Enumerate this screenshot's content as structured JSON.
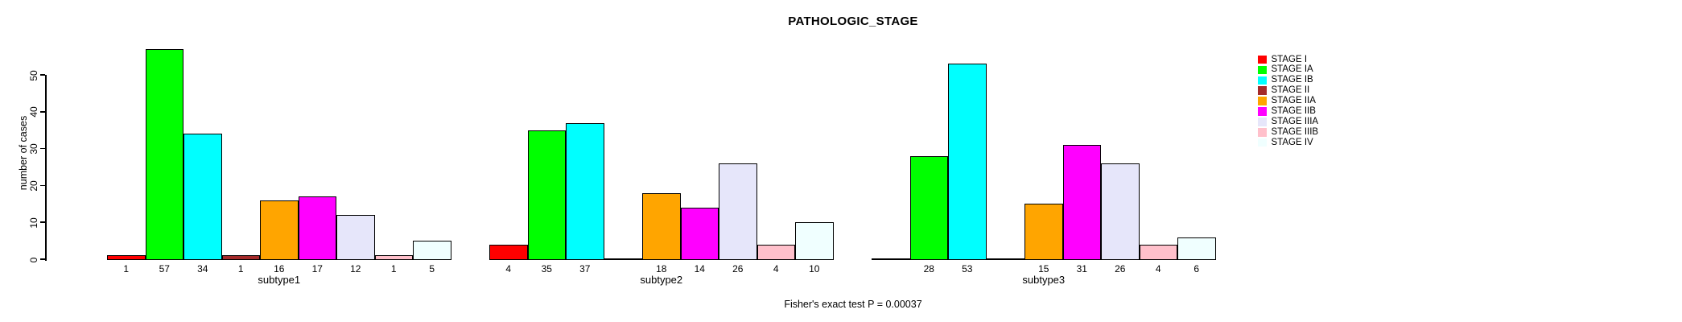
{
  "title": "PATHOLOGIC_STAGE",
  "footer": "Fisher's exact test P = 0.00037",
  "chart_data": {
    "type": "bar",
    "title": "PATHOLOGIC_STAGE",
    "xlabel": "",
    "ylabel": "number of cases",
    "ylim": [
      0,
      57
    ],
    "yticks": [
      0,
      10,
      20,
      30,
      40,
      50
    ],
    "grid": false,
    "bar_value_labels_shown": true,
    "legend_position": "right",
    "legend_title": "",
    "stages": [
      {
        "name": "STAGE I",
        "color": "#FF0000"
      },
      {
        "name": "STAGE IA",
        "color": "#00FF00"
      },
      {
        "name": "STAGE IB",
        "color": "#00FFFF"
      },
      {
        "name": "STAGE II",
        "color": "#A52A2A"
      },
      {
        "name": "STAGE IIA",
        "color": "#FFA500"
      },
      {
        "name": "STAGE IIB",
        "color": "#FF00FF"
      },
      {
        "name": "STAGE IIIA",
        "color": "#E6E6FA"
      },
      {
        "name": "STAGE IIIB",
        "color": "#FFC0CB"
      },
      {
        "name": "STAGE IV",
        "color": "#F0FFFF"
      }
    ],
    "categories": [
      "subtype1",
      "subtype2",
      "subtype3"
    ],
    "groups": [
      {
        "label": "subtype1",
        "values": [
          1,
          57,
          34,
          1,
          16,
          17,
          12,
          1,
          5
        ]
      },
      {
        "label": "subtype2",
        "values": [
          4,
          35,
          37,
          0,
          18,
          14,
          26,
          4,
          10
        ]
      },
      {
        "label": "subtype3",
        "values": [
          0,
          28,
          53,
          0,
          15,
          31,
          26,
          4,
          6
        ]
      }
    ],
    "annotation": "Fisher's exact test P = 0.00037"
  }
}
